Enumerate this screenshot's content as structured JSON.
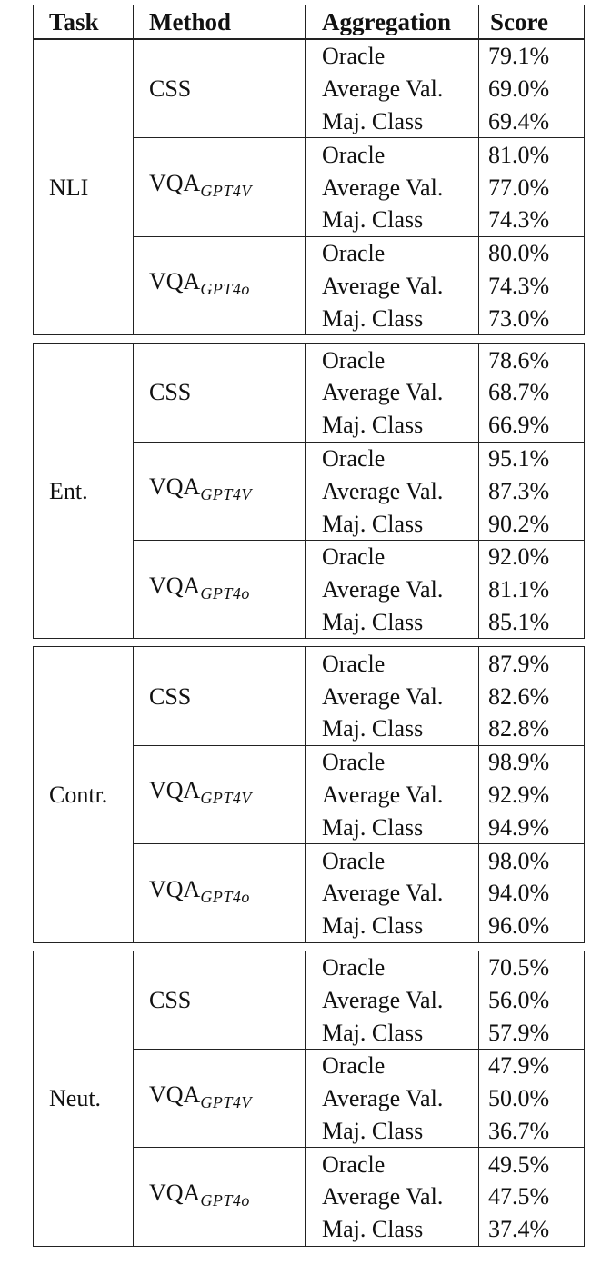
{
  "headers": {
    "task": "Task",
    "method": "Method",
    "aggregation": "Aggregation",
    "score": "Score"
  },
  "groups": [
    {
      "task": "NLI",
      "methods": [
        {
          "name": "CSS",
          "sub": "",
          "rows": [
            {
              "agg": "Oracle",
              "score": "79.1%"
            },
            {
              "agg": "Average Val.",
              "score": "69.0%"
            },
            {
              "agg": "Maj. Class",
              "score": "69.4%"
            }
          ]
        },
        {
          "name": "VQA",
          "sub": "GPT4V",
          "rows": [
            {
              "agg": "Oracle",
              "score": "81.0%"
            },
            {
              "agg": "Average Val.",
              "score": "77.0%"
            },
            {
              "agg": "Maj. Class",
              "score": "74.3%"
            }
          ]
        },
        {
          "name": "VQA",
          "sub": "GPT4o",
          "rows": [
            {
              "agg": "Oracle",
              "score": "80.0%"
            },
            {
              "agg": "Average Val.",
              "score": "74.3%"
            },
            {
              "agg": "Maj. Class",
              "score": "73.0%"
            }
          ]
        }
      ]
    },
    {
      "task": "Ent.",
      "methods": [
        {
          "name": "CSS",
          "sub": "",
          "rows": [
            {
              "agg": "Oracle",
              "score": "78.6%"
            },
            {
              "agg": "Average Val.",
              "score": "68.7%"
            },
            {
              "agg": "Maj. Class",
              "score": "66.9%"
            }
          ]
        },
        {
          "name": "VQA",
          "sub": "GPT4V",
          "rows": [
            {
              "agg": "Oracle",
              "score": "95.1%"
            },
            {
              "agg": "Average Val.",
              "score": "87.3%"
            },
            {
              "agg": "Maj. Class",
              "score": "90.2%"
            }
          ]
        },
        {
          "name": "VQA",
          "sub": "GPT4o",
          "rows": [
            {
              "agg": "Oracle",
              "score": "92.0%"
            },
            {
              "agg": "Average Val.",
              "score": "81.1%"
            },
            {
              "agg": "Maj. Class",
              "score": "85.1%"
            }
          ]
        }
      ]
    },
    {
      "task": "Contr.",
      "methods": [
        {
          "name": "CSS",
          "sub": "",
          "rows": [
            {
              "agg": "Oracle",
              "score": "87.9%"
            },
            {
              "agg": "Average Val.",
              "score": "82.6%"
            },
            {
              "agg": "Maj. Class",
              "score": "82.8%"
            }
          ]
        },
        {
          "name": "VQA",
          "sub": "GPT4V",
          "rows": [
            {
              "agg": "Oracle",
              "score": "98.9%"
            },
            {
              "agg": "Average Val.",
              "score": "92.9%"
            },
            {
              "agg": "Maj. Class",
              "score": "94.9%"
            }
          ]
        },
        {
          "name": "VQA",
          "sub": "GPT4o",
          "rows": [
            {
              "agg": "Oracle",
              "score": "98.0%"
            },
            {
              "agg": "Average Val.",
              "score": "94.0%"
            },
            {
              "agg": "Maj. Class",
              "score": "96.0%"
            }
          ]
        }
      ]
    },
    {
      "task": "Neut.",
      "methods": [
        {
          "name": "CSS",
          "sub": "",
          "rows": [
            {
              "agg": "Oracle",
              "score": "70.5%"
            },
            {
              "agg": "Average Val.",
              "score": "56.0%"
            },
            {
              "agg": "Maj. Class",
              "score": "57.9%"
            }
          ]
        },
        {
          "name": "VQA",
          "sub": "GPT4V",
          "rows": [
            {
              "agg": "Oracle",
              "score": "47.9%"
            },
            {
              "agg": "Average Val.",
              "score": "50.0%"
            },
            {
              "agg": "Maj. Class",
              "score": "36.7%"
            }
          ]
        },
        {
          "name": "VQA",
          "sub": "GPT4o",
          "rows": [
            {
              "agg": "Oracle",
              "score": "49.5%"
            },
            {
              "agg": "Average Val.",
              "score": "47.5%"
            },
            {
              "agg": "Maj. Class",
              "score": "37.4%"
            }
          ]
        }
      ]
    }
  ]
}
